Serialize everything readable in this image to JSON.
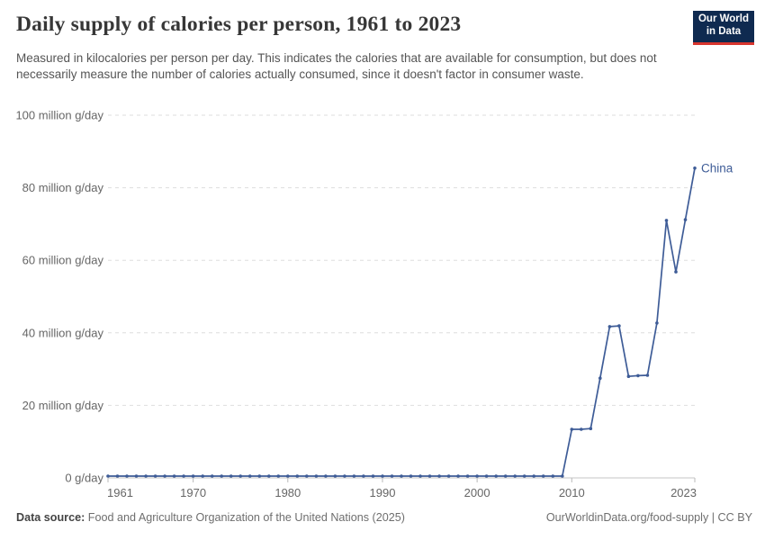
{
  "header": {
    "title": "Daily supply of calories per person, 1961 to 2023",
    "subtitle": "Measured in kilocalories per person per day. This indicates the calories that are available for consumption, but does not necessarily measure the number of calories actually consumed, since it doesn't factor in consumer waste.",
    "logo": {
      "line1": "Our World",
      "line2": "in Data",
      "bg_color": "#0f2a50",
      "accent_color": "#d8352e"
    }
  },
  "footer": {
    "source_label": "Data source:",
    "source_text": "Food and Agriculture Organization of the United Nations (2025)",
    "link_text": "OurWorldinData.org/food-supply | CC BY"
  },
  "chart_data": {
    "type": "line",
    "title": "Daily supply of calories per person, 1961 to 2023",
    "xlabel": "",
    "ylabel": "",
    "grid": "dashed-horizontal",
    "legend_position": "end-of-line-label",
    "ylim": [
      0,
      100
    ],
    "yticks": [
      0,
      20,
      40,
      60,
      80,
      100
    ],
    "ytick_labels": [
      "0 g/day",
      "20 million g/day",
      "40 million g/day",
      "60 million g/day",
      "80 million g/day",
      "100 million g/day"
    ],
    "x_range": [
      1961,
      2023
    ],
    "xticks": [
      1961,
      1970,
      1980,
      1990,
      2000,
      2010,
      2023
    ],
    "x": [
      1961,
      1962,
      1963,
      1964,
      1965,
      1966,
      1967,
      1968,
      1969,
      1970,
      1971,
      1972,
      1973,
      1974,
      1975,
      1976,
      1977,
      1978,
      1979,
      1980,
      1981,
      1982,
      1983,
      1984,
      1985,
      1986,
      1987,
      1988,
      1989,
      1990,
      1991,
      1992,
      1993,
      1994,
      1995,
      1996,
      1997,
      1998,
      1999,
      2000,
      2001,
      2002,
      2003,
      2004,
      2005,
      2006,
      2007,
      2008,
      2009,
      2010,
      2011,
      2012,
      2013,
      2014,
      2015,
      2016,
      2017,
      2018,
      2019,
      2020,
      2021,
      2022,
      2023
    ],
    "series": [
      {
        "name": "China",
        "color": "#3e5c97",
        "values": [
          0.5,
          0.5,
          0.5,
          0.5,
          0.5,
          0.5,
          0.5,
          0.5,
          0.5,
          0.5,
          0.5,
          0.5,
          0.5,
          0.5,
          0.5,
          0.5,
          0.5,
          0.5,
          0.5,
          0.5,
          0.5,
          0.5,
          0.5,
          0.5,
          0.5,
          0.5,
          0.5,
          0.5,
          0.5,
          0.5,
          0.5,
          0.5,
          0.5,
          0.5,
          0.5,
          0.5,
          0.5,
          0.5,
          0.5,
          0.5,
          0.5,
          0.5,
          0.5,
          0.5,
          0.5,
          0.5,
          0.5,
          0.5,
          0.5,
          13.4,
          13.4,
          13.6,
          27.5,
          41.7,
          41.9,
          28.0,
          28.2,
          28.3,
          42.7,
          71.0,
          56.8,
          71.2,
          85.4
        ]
      }
    ]
  }
}
